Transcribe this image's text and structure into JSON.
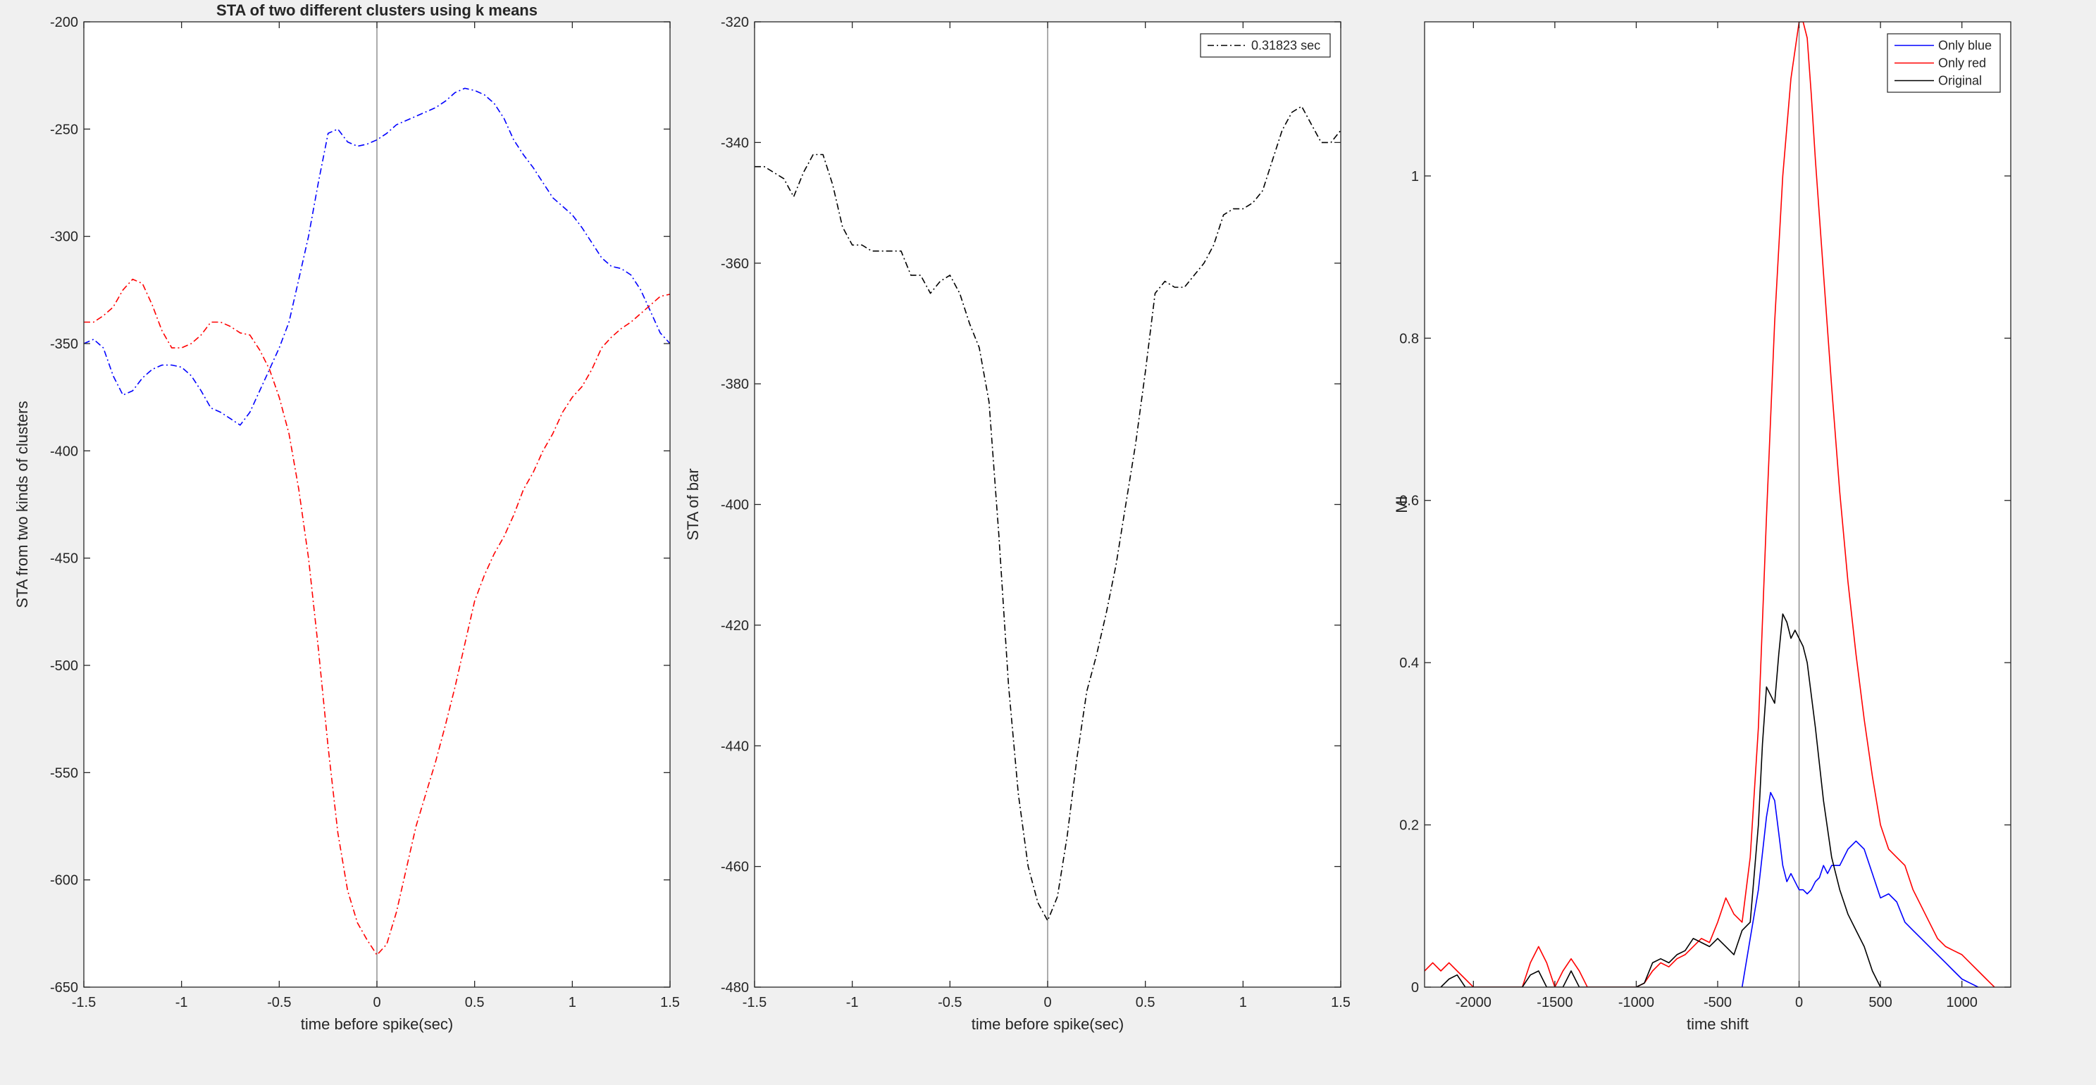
{
  "figure": {
    "background": "#f0f0f0",
    "axes_background": "#ffffff"
  },
  "chart_data": [
    {
      "type": "line",
      "title": "STA of two different clusters using k means",
      "xlabel": "time before spike(sec)",
      "ylabel": "STA from two kinds of clusters",
      "xlim": [
        -1.5,
        1.5
      ],
      "ylim": [
        -650,
        -200
      ],
      "xticks": [
        -1.5,
        -1,
        -0.5,
        0,
        0.5,
        1,
        1.5
      ],
      "xtick_labels": [
        "-1.5",
        "-1",
        "-0.5",
        "0",
        "0.5",
        "1",
        "1.5"
      ],
      "yticks": [
        -650,
        -600,
        -550,
        -500,
        -450,
        -400,
        -350,
        -300,
        -250,
        -200
      ],
      "ytick_labels": [
        "-650",
        "-600",
        "-550",
        "-500",
        "-450",
        "-400",
        "-350",
        "-300",
        "-250",
        "-200"
      ],
      "vline": 0,
      "grid": false,
      "series": [
        {
          "color": "#0000ff",
          "style": "dashdot",
          "x": [
            -1.5,
            -1.45,
            -1.4,
            -1.35,
            -1.3,
            -1.25,
            -1.2,
            -1.15,
            -1.1,
            -1.05,
            -1.0,
            -0.95,
            -0.9,
            -0.85,
            -0.8,
            -0.75,
            -0.7,
            -0.65,
            -0.6,
            -0.55,
            -0.5,
            -0.45,
            -0.4,
            -0.35,
            -0.3,
            -0.25,
            -0.2,
            -0.15,
            -0.1,
            -0.05,
            0.0,
            0.05,
            0.1,
            0.15,
            0.2,
            0.25,
            0.3,
            0.35,
            0.4,
            0.45,
            0.5,
            0.55,
            0.6,
            0.65,
            0.7,
            0.75,
            0.8,
            0.85,
            0.9,
            0.95,
            1.0,
            1.05,
            1.1,
            1.15,
            1.2,
            1.25,
            1.3,
            1.35,
            1.4,
            1.45,
            1.5
          ],
          "y": [
            -350,
            -348,
            -352,
            -365,
            -374,
            -372,
            -366,
            -362,
            -360,
            -360,
            -361,
            -365,
            -372,
            -380,
            -382,
            -385,
            -388,
            -382,
            -372,
            -362,
            -352,
            -340,
            -320,
            -300,
            -275,
            -252,
            -250,
            -256,
            -258,
            -257,
            -255,
            -252,
            -248,
            -246,
            -244,
            -242,
            -240,
            -237,
            -233,
            -231,
            -232,
            -234,
            -238,
            -245,
            -255,
            -262,
            -268,
            -275,
            -282,
            -286,
            -290,
            -296,
            -303,
            -310,
            -314,
            -315,
            -318,
            -325,
            -335,
            -345,
            -350
          ]
        },
        {
          "color": "#ff0000",
          "style": "dashdot",
          "x": [
            -1.5,
            -1.45,
            -1.4,
            -1.35,
            -1.3,
            -1.25,
            -1.2,
            -1.15,
            -1.1,
            -1.05,
            -1.0,
            -0.95,
            -0.9,
            -0.85,
            -0.8,
            -0.75,
            -0.7,
            -0.65,
            -0.6,
            -0.55,
            -0.5,
            -0.45,
            -0.4,
            -0.35,
            -0.3,
            -0.25,
            -0.2,
            -0.15,
            -0.1,
            -0.05,
            0.0,
            0.05,
            0.1,
            0.15,
            0.2,
            0.25,
            0.3,
            0.35,
            0.4,
            0.45,
            0.5,
            0.55,
            0.6,
            0.65,
            0.7,
            0.75,
            0.8,
            0.85,
            0.9,
            0.95,
            1.0,
            1.05,
            1.1,
            1.15,
            1.2,
            1.25,
            1.3,
            1.35,
            1.4,
            1.45,
            1.5
          ],
          "y": [
            -340,
            -340,
            -337,
            -333,
            -325,
            -320,
            -322,
            -332,
            -344,
            -352,
            -352,
            -350,
            -346,
            -340,
            -340,
            -342,
            -345,
            -346,
            -353,
            -362,
            -375,
            -392,
            -418,
            -450,
            -492,
            -538,
            -578,
            -605,
            -620,
            -628,
            -635,
            -630,
            -615,
            -595,
            -575,
            -560,
            -545,
            -528,
            -510,
            -490,
            -470,
            -458,
            -448,
            -440,
            -430,
            -418,
            -410,
            -400,
            -392,
            -382,
            -375,
            -370,
            -362,
            -352,
            -347,
            -343,
            -340,
            -336,
            -332,
            -328,
            -327
          ]
        }
      ]
    },
    {
      "type": "line",
      "title": "",
      "xlabel": "time before spike(sec)",
      "ylabel": "STA of bar",
      "xlim": [
        -1.5,
        1.5
      ],
      "ylim": [
        -480,
        -320
      ],
      "xticks": [
        -1.5,
        -1,
        -0.5,
        0,
        0.5,
        1,
        1.5
      ],
      "xtick_labels": [
        "-1.5",
        "-1",
        "-0.5",
        "0",
        "0.5",
        "1",
        "1.5"
      ],
      "yticks": [
        -480,
        -460,
        -440,
        -420,
        -400,
        -380,
        -360,
        -340,
        -320
      ],
      "ytick_labels": [
        "-480",
        "-460",
        "-440",
        "-420",
        "-400",
        "-380",
        "-360",
        "-340",
        "-320"
      ],
      "vline": 0,
      "grid": false,
      "legend": {
        "entries": [
          "0.31823 sec"
        ],
        "location": "top-right"
      },
      "series": [
        {
          "name": "0.31823 sec",
          "color": "#000000",
          "style": "dashdot",
          "x": [
            -1.5,
            -1.45,
            -1.4,
            -1.35,
            -1.3,
            -1.25,
            -1.2,
            -1.15,
            -1.1,
            -1.05,
            -1.0,
            -0.95,
            -0.9,
            -0.85,
            -0.8,
            -0.75,
            -0.7,
            -0.65,
            -0.6,
            -0.55,
            -0.5,
            -0.45,
            -0.4,
            -0.35,
            -0.3,
            -0.25,
            -0.2,
            -0.15,
            -0.1,
            -0.05,
            0.0,
            0.05,
            0.1,
            0.15,
            0.2,
            0.25,
            0.3,
            0.35,
            0.4,
            0.45,
            0.5,
            0.55,
            0.6,
            0.65,
            0.7,
            0.75,
            0.8,
            0.85,
            0.9,
            0.95,
            1.0,
            1.05,
            1.1,
            1.15,
            1.2,
            1.25,
            1.3,
            1.35,
            1.4,
            1.45,
            1.5
          ],
          "y": [
            -344,
            -344,
            -345,
            -346,
            -349,
            -345,
            -342,
            -342,
            -347,
            -354,
            -357,
            -357,
            -358,
            -358,
            -358,
            -358,
            -362,
            -362,
            -365,
            -363,
            -362,
            -365,
            -370,
            -374,
            -383,
            -405,
            -430,
            -448,
            -460,
            -466,
            -469,
            -465,
            -455,
            -442,
            -431,
            -425,
            -418,
            -410,
            -400,
            -390,
            -378,
            -365,
            -363,
            -364,
            -364,
            -362,
            -360,
            -357,
            -352,
            -351,
            -351,
            -350,
            -348,
            -343,
            -338,
            -335,
            -334,
            -337,
            -340,
            -340,
            -338
          ]
        }
      ]
    },
    {
      "type": "line",
      "title": "",
      "xlabel": "time shift",
      "ylabel": "MI",
      "xlim": [
        -2300,
        1300
      ],
      "ylim": [
        0,
        1.19
      ],
      "xticks": [
        -2000,
        -1500,
        -1000,
        -500,
        0,
        500,
        1000
      ],
      "xtick_labels": [
        "-2000",
        "-1500",
        "-1000",
        "-500",
        "0",
        "500",
        "1000"
      ],
      "yticks": [
        0,
        0.2,
        0.4,
        0.6,
        0.8,
        1
      ],
      "ytick_labels": [
        "0",
        "0.2",
        "0.4",
        "0.6",
        "0.8",
        "1"
      ],
      "vline": 0,
      "grid": false,
      "legend": {
        "entries": [
          "Only blue",
          "Only red",
          "Original"
        ],
        "location": "top-right"
      },
      "series": [
        {
          "name": "Only blue",
          "color": "#0000ff",
          "style": "solid",
          "x": [
            -350,
            -300,
            -250,
            -200,
            -175,
            -150,
            -125,
            -100,
            -75,
            -50,
            -25,
            0,
            25,
            50,
            75,
            100,
            125,
            150,
            175,
            200,
            250,
            300,
            350,
            400,
            450,
            500,
            550,
            600,
            650,
            700,
            750,
            800,
            850,
            900,
            950,
            1000,
            1050,
            1100
          ],
          "y": [
            0,
            0.06,
            0.12,
            0.21,
            0.24,
            0.23,
            0.19,
            0.15,
            0.13,
            0.14,
            0.13,
            0.12,
            0.12,
            0.115,
            0.12,
            0.13,
            0.135,
            0.15,
            0.14,
            0.15,
            0.15,
            0.17,
            0.18,
            0.17,
            0.14,
            0.11,
            0.115,
            0.105,
            0.08,
            0.07,
            0.06,
            0.05,
            0.04,
            0.03,
            0.02,
            0.01,
            0.005,
            0
          ]
        },
        {
          "name": "Only red",
          "color": "#ff0000",
          "style": "solid",
          "x": [
            -2300,
            -2250,
            -2200,
            -2150,
            -2100,
            -2050,
            -2000,
            -1950,
            -1900,
            -1850,
            -1800,
            -1750,
            -1700,
            -1650,
            -1600,
            -1550,
            -1500,
            -1450,
            -1400,
            -1350,
            -1300,
            -1250,
            -1200,
            -1150,
            -1100,
            -1050,
            -1000,
            -950,
            -900,
            -850,
            -800,
            -750,
            -700,
            -650,
            -600,
            -550,
            -500,
            -450,
            -400,
            -350,
            -300,
            -250,
            -200,
            -150,
            -100,
            -50,
            0,
            25,
            50,
            75,
            100,
            150,
            200,
            250,
            300,
            350,
            400,
            450,
            500,
            550,
            600,
            650,
            700,
            750,
            800,
            850,
            900,
            950,
            1000,
            1050,
            1100,
            1150,
            1200
          ],
          "y": [
            0.02,
            0.03,
            0.02,
            0.03,
            0.02,
            0.01,
            0,
            0,
            0,
            0,
            0,
            0,
            0,
            0.03,
            0.05,
            0.03,
            0,
            0.02,
            0.035,
            0.02,
            0,
            0,
            0,
            0,
            0,
            0,
            0,
            0.005,
            0.02,
            0.03,
            0.025,
            0.035,
            0.04,
            0.05,
            0.06,
            0.055,
            0.08,
            0.11,
            0.09,
            0.08,
            0.16,
            0.32,
            0.58,
            0.82,
            1.0,
            1.12,
            1.19,
            1.19,
            1.17,
            1.1,
            1.02,
            0.88,
            0.74,
            0.61,
            0.5,
            0.41,
            0.33,
            0.26,
            0.2,
            0.17,
            0.16,
            0.15,
            0.12,
            0.1,
            0.08,
            0.06,
            0.05,
            0.045,
            0.04,
            0.03,
            0.02,
            0.01,
            0
          ]
        },
        {
          "name": "Original",
          "color": "#000000",
          "style": "solid",
          "x": [
            -2200,
            -2150,
            -2100,
            -2050,
            -1700,
            -1650,
            -1600,
            -1550,
            -1450,
            -1400,
            -1350,
            -1000,
            -950,
            -900,
            -850,
            -800,
            -750,
            -700,
            -650,
            -600,
            -550,
            -500,
            -450,
            -400,
            -350,
            -300,
            -250,
            -225,
            -200,
            -175,
            -150,
            -125,
            -100,
            -75,
            -50,
            -25,
            0,
            25,
            50,
            100,
            150,
            200,
            250,
            300,
            350,
            400,
            450,
            500
          ],
          "y": [
            0,
            0.01,
            0.015,
            0,
            0,
            0.015,
            0.02,
            0,
            0,
            0.02,
            0,
            0,
            0.005,
            0.03,
            0.035,
            0.03,
            0.04,
            0.045,
            0.06,
            0.055,
            0.05,
            0.06,
            0.05,
            0.04,
            0.07,
            0.08,
            0.2,
            0.3,
            0.37,
            0.36,
            0.35,
            0.41,
            0.46,
            0.45,
            0.43,
            0.44,
            0.43,
            0.42,
            0.4,
            0.32,
            0.23,
            0.16,
            0.12,
            0.09,
            0.07,
            0.05,
            0.02,
            0
          ]
        }
      ]
    }
  ]
}
